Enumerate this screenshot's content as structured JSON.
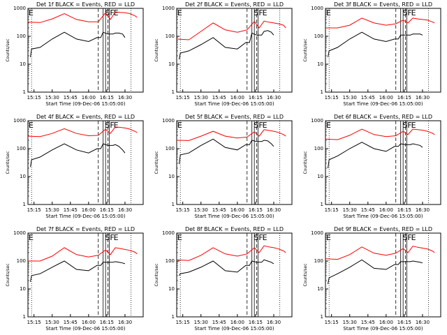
{
  "chart_data": [
    {
      "type": "line",
      "title": "Det 1f BLACK = Events, RED = LLD",
      "xlabel": "Start Time (09-Dec-06 15:05:00)",
      "ylabel": "Counts/sec",
      "xticks": [
        "15:15",
        "15:30",
        "15:45",
        "16:00",
        "16:15",
        "16:30"
      ],
      "yticks": [
        "1",
        "10",
        "100",
        "1000"
      ],
      "yscale": "log",
      "ylim": [
        1,
        1000
      ],
      "flags": [
        "E",
        "S",
        "F",
        "E"
      ],
      "series": [
        {
          "color": "#ff0000",
          "x": [
            0,
            10,
            20,
            30,
            40,
            50,
            58,
            64,
            68,
            72,
            76,
            80,
            84,
            88,
            90
          ],
          "y": [
            320,
            310,
            420,
            650,
            400,
            330,
            330,
            700,
            400,
            750,
            720,
            700,
            650,
            550,
            480
          ]
        },
        {
          "color": "#000000",
          "x": [
            2,
            3,
            10,
            20,
            30,
            40,
            50,
            57,
            60,
            62,
            66,
            70,
            72,
            75,
            78,
            80
          ],
          "y": [
            18,
            35,
            40,
            80,
            140,
            80,
            65,
            90,
            90,
            140,
            120,
            120,
            130,
            130,
            120,
            90
          ]
        }
      ]
    },
    {
      "type": "line",
      "title": "Det 2f BLACK = Events, RED = LLD",
      "xlabel": "Start Time (09-Dec-06 15:05:00)",
      "ylabel": "Counts/sec",
      "xticks": [
        "15:15",
        "15:30",
        "15:45",
        "16:00",
        "16:15",
        "16:30"
      ],
      "yticks": [
        "1",
        "10",
        "100",
        "1000"
      ],
      "yscale": "log",
      "ylim": [
        1,
        1000
      ],
      "flags": [
        "E",
        "S",
        "F",
        "E"
      ],
      "series": [
        {
          "color": "#ff0000",
          "x": [
            0,
            10,
            20,
            30,
            40,
            50,
            58,
            64,
            68,
            72,
            76,
            80,
            84,
            88,
            90
          ],
          "y": [
            80,
            75,
            150,
            300,
            170,
            140,
            170,
            340,
            200,
            350,
            320,
            300,
            280,
            250,
            200
          ]
        },
        {
          "color": "#000000",
          "x": [
            2,
            3,
            10,
            20,
            30,
            40,
            50,
            57,
            60,
            62,
            66,
            70,
            72,
            75,
            78,
            80
          ],
          "y": [
            15,
            25,
            30,
            50,
            90,
            40,
            35,
            60,
            60,
            130,
            110,
            110,
            150,
            160,
            140,
            110
          ]
        }
      ]
    },
    {
      "type": "line",
      "title": "Det 3f BLACK = Events, RED = LLD",
      "xlabel": "Start Time (09-Dec-06 15:05:00)",
      "ylabel": "Counts/sec",
      "xticks": [
        "15:15",
        "15:30",
        "15:45",
        "16:00",
        "16:15",
        "16:30"
      ],
      "yticks": [
        "1",
        "10",
        "100",
        "1000"
      ],
      "yscale": "log",
      "ylim": [
        1,
        1000
      ],
      "flags": [
        "E",
        "S",
        "F",
        "E"
      ],
      "series": [
        {
          "color": "#ff0000",
          "x": [
            0,
            10,
            20,
            30,
            40,
            50,
            58,
            64,
            68,
            72,
            76,
            80,
            84,
            88,
            90
          ],
          "y": [
            200,
            200,
            250,
            450,
            300,
            250,
            280,
            380,
            300,
            450,
            420,
            400,
            380,
            330,
            300
          ]
        },
        {
          "color": "#000000",
          "x": [
            2,
            3,
            10,
            20,
            30,
            40,
            50,
            57,
            60,
            62,
            66,
            70,
            72,
            75,
            78,
            80
          ],
          "y": [
            18,
            30,
            40,
            80,
            140,
            80,
            65,
            80,
            80,
            110,
            110,
            110,
            120,
            120,
            120,
            110
          ]
        }
      ]
    },
    {
      "type": "line",
      "title": "Det 4f BLACK = Events, RED = LLD",
      "xlabel": "Start Time (09-Dec-06 15:05:00)",
      "ylabel": "Counts/sec",
      "xticks": [
        "15:15",
        "15:30",
        "15:45",
        "16:00",
        "16:15",
        "16:30"
      ],
      "yticks": [
        "1",
        "10",
        "100",
        "1000"
      ],
      "yscale": "log",
      "ylim": [
        1,
        1000
      ],
      "flags": [
        "E",
        "S",
        "F",
        "E"
      ],
      "series": [
        {
          "color": "#ff0000",
          "x": [
            0,
            10,
            20,
            30,
            40,
            50,
            58,
            64,
            68,
            72,
            76,
            80,
            84,
            88,
            90
          ],
          "y": [
            280,
            270,
            350,
            520,
            350,
            290,
            300,
            500,
            350,
            600,
            580,
            550,
            500,
            420,
            380
          ]
        },
        {
          "color": "#000000",
          "x": [
            2,
            3,
            10,
            20,
            30,
            40,
            50,
            57,
            60,
            62,
            66,
            70,
            72,
            75,
            78,
            80
          ],
          "y": [
            22,
            40,
            50,
            90,
            150,
            90,
            70,
            100,
            100,
            150,
            130,
            130,
            140,
            120,
            90,
            70
          ]
        }
      ]
    },
    {
      "type": "line",
      "title": "Det 5f BLACK = Events, RED = LLD",
      "xlabel": "Start Time (09-Dec-06 15:05:00)",
      "ylabel": "Counts/sec",
      "xticks": [
        "15:15",
        "15:30",
        "15:45",
        "16:00",
        "16:15",
        "16:30"
      ],
      "yticks": [
        "1",
        "10",
        "100",
        "1000"
      ],
      "yscale": "log",
      "ylim": [
        1,
        1000
      ],
      "flags": [
        "E",
        "S",
        "F",
        "E"
      ],
      "series": [
        {
          "color": "#ff0000",
          "x": [
            0,
            10,
            20,
            30,
            40,
            50,
            58,
            64,
            68,
            72,
            76,
            80,
            84,
            88,
            90
          ],
          "y": [
            200,
            195,
            280,
            420,
            280,
            240,
            260,
            400,
            280,
            480,
            450,
            420,
            380,
            320,
            280
          ]
        },
        {
          "color": "#000000",
          "x": [
            2,
            3,
            10,
            20,
            30,
            40,
            50,
            57,
            60,
            62,
            66,
            70,
            72,
            75,
            78,
            80
          ],
          "y": [
            28,
            60,
            70,
            130,
            220,
            110,
            90,
            140,
            140,
            200,
            180,
            180,
            200,
            190,
            150,
            120
          ]
        }
      ]
    },
    {
      "type": "line",
      "title": "Det 6f BLACK = Events, RED = LLD",
      "xlabel": "Start Time (09-Dec-06 15:05:00)",
      "ylabel": "Counts/sec",
      "xticks": [
        "15:15",
        "15:30",
        "15:45",
        "16:00",
        "16:15",
        "16:30"
      ],
      "yticks": [
        "1",
        "10",
        "100",
        "1000"
      ],
      "yscale": "log",
      "ylim": [
        1,
        1000
      ],
      "flags": [
        "E",
        "S",
        "F",
        "E"
      ],
      "series": [
        {
          "color": "#ff0000",
          "x": [
            0,
            10,
            20,
            30,
            40,
            50,
            58,
            64,
            68,
            72,
            76,
            80,
            84,
            88,
            90
          ],
          "y": [
            220,
            210,
            300,
            500,
            320,
            270,
            290,
            420,
            320,
            500,
            480,
            460,
            420,
            360,
            320
          ]
        },
        {
          "color": "#000000",
          "x": [
            2,
            3,
            10,
            20,
            30,
            40,
            50,
            57,
            60,
            62,
            66,
            70,
            72,
            75,
            78,
            80
          ],
          "y": [
            20,
            40,
            55,
            100,
            170,
            100,
            80,
            120,
            120,
            150,
            140,
            140,
            150,
            140,
            130,
            110
          ]
        }
      ]
    },
    {
      "type": "line",
      "title": "Det 7f BLACK = Events, RED = LLD",
      "xlabel": "Start Time (09-Dec-06 15:05:00)",
      "ylabel": "Counts/sec",
      "xticks": [
        "15:15",
        "15:30",
        "15:45",
        "16:00",
        "16:15",
        "16:30"
      ],
      "yticks": [
        "1",
        "10",
        "100",
        "1000"
      ],
      "yscale": "log",
      "ylim": [
        1,
        1000
      ],
      "flags": [
        "E",
        "S",
        "F",
        "E"
      ],
      "series": [
        {
          "color": "#ff0000",
          "x": [
            0,
            10,
            20,
            30,
            40,
            50,
            58,
            64,
            68,
            72,
            76,
            80,
            84,
            88,
            90
          ],
          "y": [
            100,
            100,
            150,
            300,
            170,
            140,
            160,
            250,
            170,
            300,
            280,
            260,
            240,
            210,
            180
          ]
        },
        {
          "color": "#000000",
          "x": [
            2,
            3,
            10,
            20,
            30,
            40,
            50,
            57,
            60,
            62,
            66,
            70,
            72,
            75,
            78,
            80
          ],
          "y": [
            18,
            30,
            35,
            60,
            100,
            50,
            45,
            70,
            70,
            90,
            90,
            90,
            95,
            90,
            85,
            80
          ]
        }
      ]
    },
    {
      "type": "line",
      "title": "Det 8f BLACK = Events, RED = LLD",
      "xlabel": "Start Time (09-Dec-06 15:05:00)",
      "ylabel": "Counts/sec",
      "xticks": [
        "15:15",
        "15:30",
        "15:45",
        "16:00",
        "16:15",
        "16:30"
      ],
      "yticks": [
        "1",
        "10",
        "100",
        "1000"
      ],
      "yscale": "log",
      "ylim": [
        1,
        1000
      ],
      "flags": [
        "E",
        "S",
        "F",
        "E"
      ],
      "series": [
        {
          "color": "#ff0000",
          "x": [
            0,
            10,
            20,
            30,
            40,
            50,
            58,
            64,
            68,
            72,
            76,
            80,
            84,
            88,
            90
          ],
          "y": [
            110,
            105,
            160,
            300,
            180,
            150,
            180,
            300,
            200,
            350,
            320,
            300,
            270,
            230,
            200
          ]
        },
        {
          "color": "#000000",
          "x": [
            2,
            3,
            10,
            20,
            30,
            40,
            50,
            57,
            60,
            62,
            66,
            70,
            72,
            75,
            78,
            80
          ],
          "y": [
            30,
            35,
            40,
            60,
            100,
            45,
            40,
            70,
            70,
            100,
            90,
            90,
            110,
            100,
            90,
            80
          ]
        }
      ]
    },
    {
      "type": "line",
      "title": "Det 9f BLACK = Events, RED = LLD",
      "xlabel": "Start Time (09-Dec-06 15:05:00)",
      "ylabel": "Counts/sec",
      "xticks": [
        "15:15",
        "15:30",
        "15:45",
        "16:00",
        "16:15",
        "16:30"
      ],
      "yticks": [
        "1",
        "10",
        "100",
        "1000"
      ],
      "yscale": "log",
      "ylim": [
        1,
        1000
      ],
      "flags": [
        "E",
        "S",
        "F",
        "E"
      ],
      "series": [
        {
          "color": "#ff0000",
          "x": [
            0,
            10,
            20,
            30,
            40,
            50,
            58,
            64,
            68,
            72,
            76,
            80,
            84,
            88,
            90
          ],
          "y": [
            120,
            115,
            170,
            320,
            190,
            160,
            190,
            280,
            200,
            340,
            310,
            290,
            270,
            230,
            200
          ]
        },
        {
          "color": "#000000",
          "x": [
            2,
            3,
            10,
            20,
            30,
            40,
            50,
            57,
            60,
            62,
            66,
            70,
            72,
            75,
            78,
            80
          ],
          "y": [
            15,
            25,
            35,
            60,
            110,
            55,
            50,
            75,
            75,
            95,
            95,
            95,
            100,
            95,
            90,
            85
          ]
        }
      ]
    }
  ]
}
